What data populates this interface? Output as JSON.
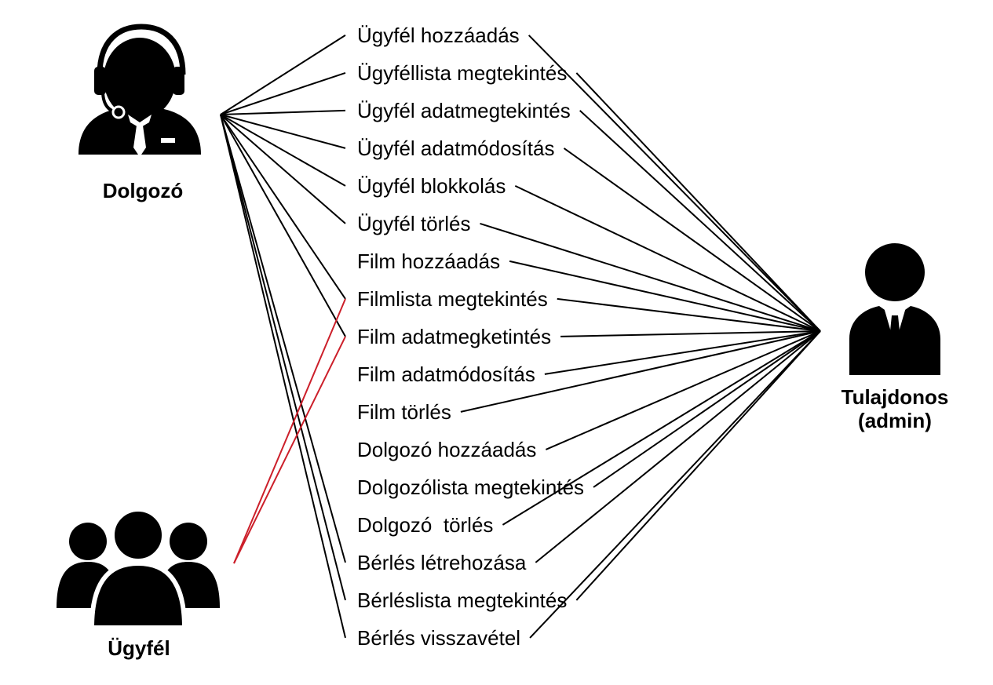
{
  "actors": {
    "dolgozo": {
      "label": "Dolgozó",
      "icon": "support-agent-icon"
    },
    "ugyfel": {
      "label": "Ügyfél",
      "icon": "user-group-icon"
    },
    "tulajdonos": {
      "label_line1": "Tulajdonos",
      "label_line2": "(admin)",
      "icon": "businessman-icon"
    }
  },
  "use_cases": [
    "Ügyfél hozzáadás",
    "Ügyféllista megtekintés",
    "Ügyfél adatmegtekintés",
    "Ügyfél adatmódosítás",
    "Ügyfél blokkolás",
    "Ügyfél törlés",
    "Film hozzáadás",
    "Filmlista megtekintés",
    "Film adatmegketintés",
    "Film adatmódosítás",
    "Film törlés",
    "Dolgozó hozzáadás",
    "Dolgozólista megtekintés",
    "Dolgozó  törlés",
    "Bérlés létrehozása",
    "Bérléslista megtekintés",
    "Bérlés visszavétel"
  ],
  "associations": {
    "dolgozo": [
      0,
      1,
      2,
      3,
      4,
      5,
      7,
      8,
      14,
      15,
      16
    ],
    "ugyfel": [
      7,
      8
    ],
    "tulajdonos": [
      0,
      1,
      2,
      3,
      4,
      5,
      6,
      7,
      8,
      9,
      10,
      11,
      12,
      13,
      14,
      15,
      16
    ]
  },
  "colors": {
    "dolgozo_lines": "#000000",
    "ugyfel_lines": "#cc1f2a",
    "tulajdonos_lines": "#000000",
    "icons": "#000000"
  }
}
